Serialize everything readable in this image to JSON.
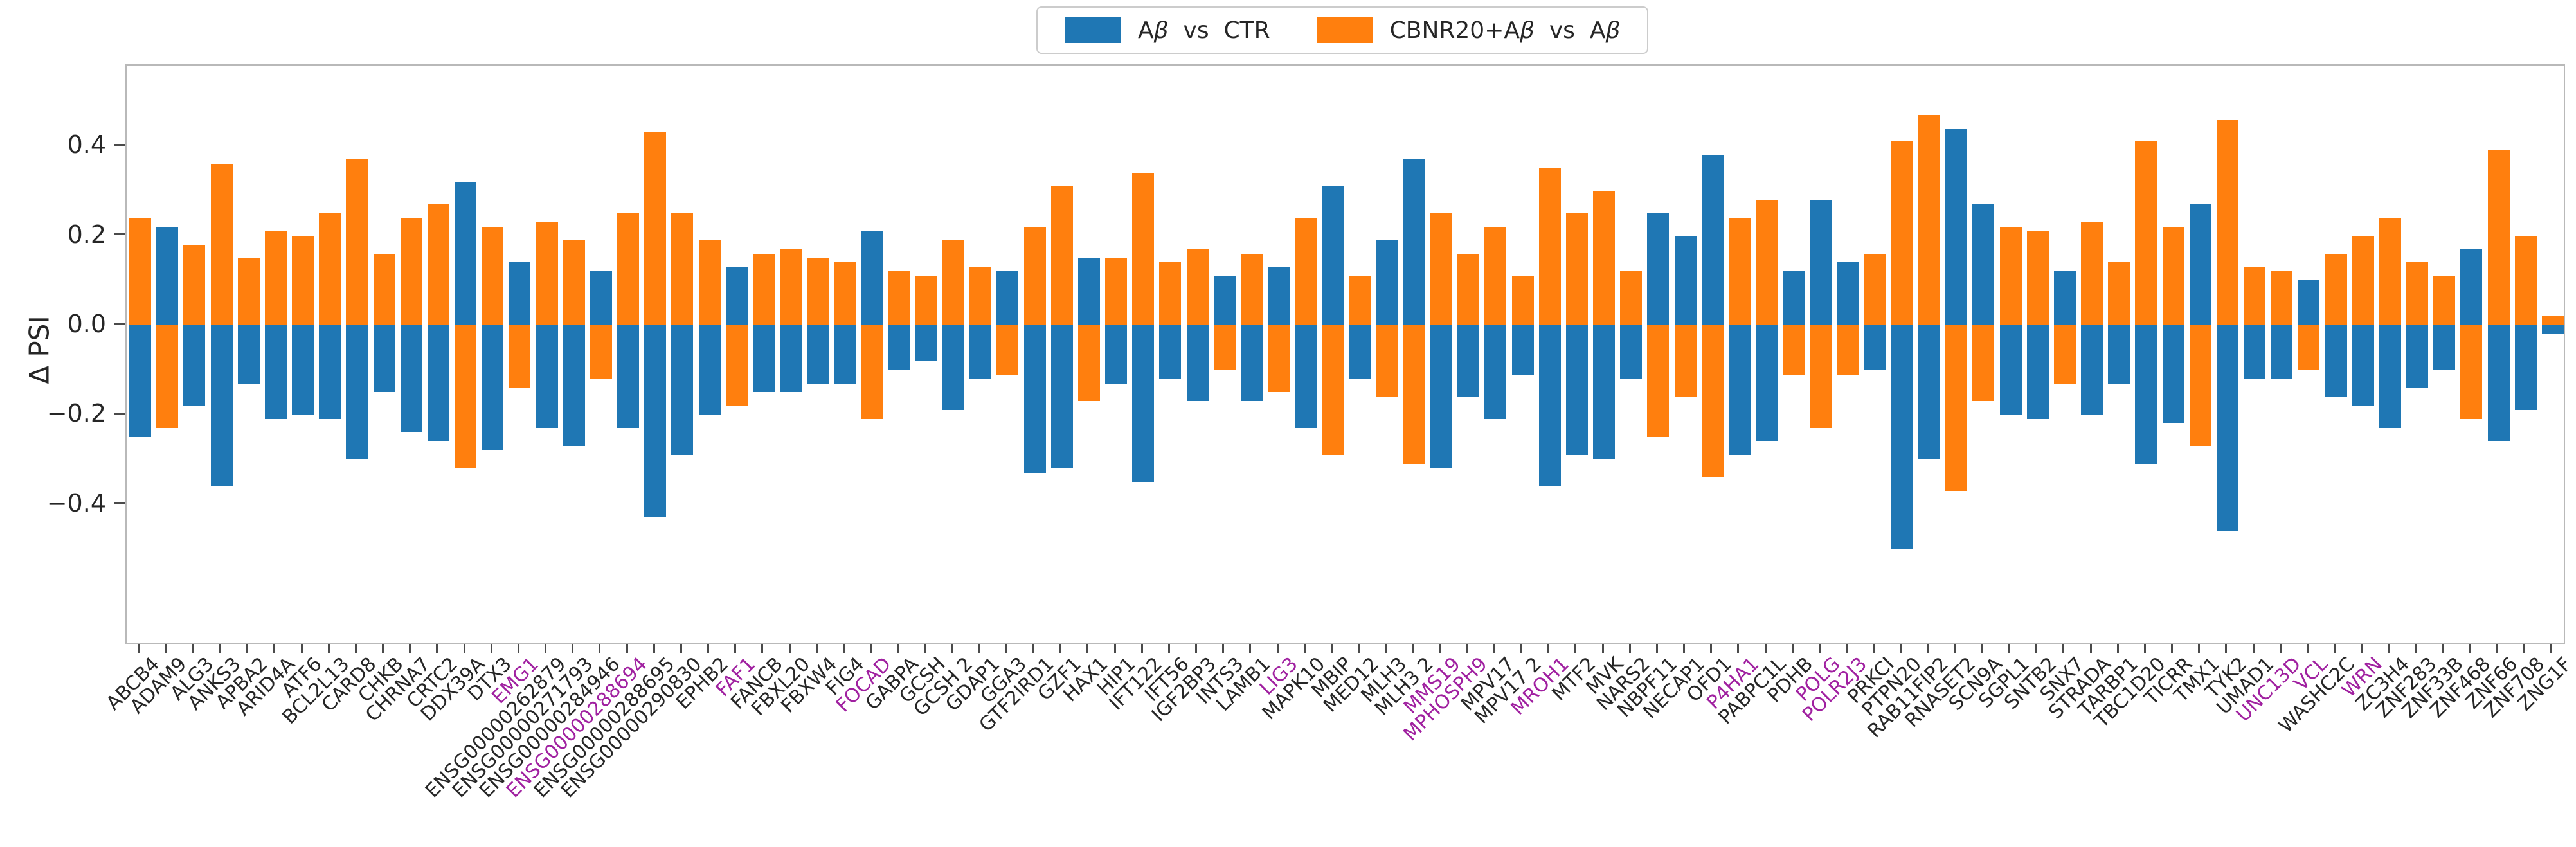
{
  "chart_data": {
    "type": "bar",
    "title": "",
    "ylabel": "Δ PSI",
    "ylim": [
      -0.715,
      0.58
    ],
    "yticks": [
      {
        "value": 0.4,
        "label": "0.4"
      },
      {
        "value": 0.2,
        "label": "0.2"
      },
      {
        "value": 0.0,
        "label": "0.0"
      },
      {
        "value": -0.2,
        "label": "−0.2"
      },
      {
        "value": -0.4,
        "label": "−0.4"
      }
    ],
    "grid": false,
    "legend_position": "top-center",
    "series": [
      {
        "name": "Aβ  vs  CTR",
        "color": "#1f77b4"
      },
      {
        "name": "CBNR20+Aβ  vs  Aβ",
        "color": "#ff7f0e"
      }
    ],
    "highlight_label_color": "#a020a0",
    "genes": [
      {
        "label": "ABCB4",
        "blue": -0.25,
        "orange": 0.24,
        "highlight": false
      },
      {
        "label": "ADAM9",
        "blue": 0.22,
        "orange": -0.23,
        "highlight": false
      },
      {
        "label": "ALG3",
        "blue": -0.18,
        "orange": 0.18,
        "highlight": false
      },
      {
        "label": "ANKS3",
        "blue": -0.36,
        "orange": 0.36,
        "highlight": false
      },
      {
        "label": "APBA2",
        "blue": -0.13,
        "orange": 0.15,
        "highlight": false
      },
      {
        "label": "ARID4A",
        "blue": -0.21,
        "orange": 0.21,
        "highlight": false
      },
      {
        "label": "ATF6",
        "blue": -0.2,
        "orange": 0.2,
        "highlight": false
      },
      {
        "label": "BCL2L13",
        "blue": -0.21,
        "orange": 0.25,
        "highlight": false
      },
      {
        "label": "CARD8",
        "blue": -0.3,
        "orange": 0.37,
        "highlight": false
      },
      {
        "label": "CHKB",
        "blue": -0.15,
        "orange": 0.16,
        "highlight": false
      },
      {
        "label": "CHRNA7",
        "blue": -0.24,
        "orange": 0.24,
        "highlight": false
      },
      {
        "label": "CRTC2",
        "blue": -0.26,
        "orange": 0.27,
        "highlight": false
      },
      {
        "label": "DDX39A",
        "blue": 0.32,
        "orange": -0.32,
        "highlight": false
      },
      {
        "label": "DTX3",
        "blue": -0.28,
        "orange": 0.22,
        "highlight": false
      },
      {
        "label": "EMG1",
        "blue": 0.14,
        "orange": -0.14,
        "highlight": true
      },
      {
        "label": "ENSG00000262879",
        "blue": -0.23,
        "orange": 0.23,
        "highlight": false
      },
      {
        "label": "ENSG00000271793",
        "blue": -0.27,
        "orange": 0.19,
        "highlight": false
      },
      {
        "label": "ENSG00000284946",
        "blue": 0.12,
        "orange": -0.12,
        "highlight": false
      },
      {
        "label": "ENSG00000288694",
        "blue": -0.23,
        "orange": 0.25,
        "highlight": true
      },
      {
        "label": "ENSG00000288695",
        "blue": -0.43,
        "orange": 0.43,
        "highlight": false
      },
      {
        "label": "ENSG00000290830",
        "blue": -0.29,
        "orange": 0.25,
        "highlight": false
      },
      {
        "label": "EPHB2",
        "blue": -0.2,
        "orange": 0.19,
        "highlight": false
      },
      {
        "label": "FAF1",
        "blue": 0.13,
        "orange": -0.18,
        "highlight": true
      },
      {
        "label": "FANCB",
        "blue": -0.15,
        "orange": 0.16,
        "highlight": false
      },
      {
        "label": "FBXL20",
        "blue": -0.15,
        "orange": 0.17,
        "highlight": false
      },
      {
        "label": "FBXW4",
        "blue": -0.13,
        "orange": 0.15,
        "highlight": false
      },
      {
        "label": "FIG4",
        "blue": -0.13,
        "orange": 0.14,
        "highlight": false
      },
      {
        "label": "FOCAD",
        "blue": 0.21,
        "orange": -0.21,
        "highlight": true
      },
      {
        "label": "GABPA",
        "blue": -0.1,
        "orange": 0.12,
        "highlight": false
      },
      {
        "label": "GCSH",
        "blue": -0.08,
        "orange": 0.11,
        "highlight": false
      },
      {
        "label": "GCSH 2",
        "blue": -0.19,
        "orange": 0.19,
        "highlight": false
      },
      {
        "label": "GDAP1",
        "blue": -0.12,
        "orange": 0.13,
        "highlight": false
      },
      {
        "label": "GGA3",
        "blue": 0.12,
        "orange": -0.11,
        "highlight": false
      },
      {
        "label": "GTF2IRD1",
        "blue": -0.33,
        "orange": 0.22,
        "highlight": false
      },
      {
        "label": "GZF1",
        "blue": -0.32,
        "orange": 0.31,
        "highlight": false
      },
      {
        "label": "HAX1",
        "blue": 0.15,
        "orange": -0.17,
        "highlight": false
      },
      {
        "label": "HIP1",
        "blue": -0.13,
        "orange": 0.15,
        "highlight": false
      },
      {
        "label": "IFT122",
        "blue": -0.35,
        "orange": 0.34,
        "highlight": false
      },
      {
        "label": "IFT56",
        "blue": -0.12,
        "orange": 0.14,
        "highlight": false
      },
      {
        "label": "IGF2BP3",
        "blue": -0.17,
        "orange": 0.17,
        "highlight": false
      },
      {
        "label": "INTS3",
        "blue": 0.11,
        "orange": -0.1,
        "highlight": false
      },
      {
        "label": "LAMB1",
        "blue": -0.17,
        "orange": 0.16,
        "highlight": false
      },
      {
        "label": "LIG3",
        "blue": 0.13,
        "orange": -0.15,
        "highlight": true
      },
      {
        "label": "MAPK10",
        "blue": -0.23,
        "orange": 0.24,
        "highlight": false
      },
      {
        "label": "MBIP",
        "blue": 0.31,
        "orange": -0.29,
        "highlight": false
      },
      {
        "label": "MED12",
        "blue": -0.12,
        "orange": 0.11,
        "highlight": false
      },
      {
        "label": "MLH3",
        "blue": 0.19,
        "orange": -0.16,
        "highlight": false
      },
      {
        "label": "MLH3 2",
        "blue": 0.37,
        "orange": -0.31,
        "highlight": false
      },
      {
        "label": "MMS19",
        "blue": -0.32,
        "orange": 0.25,
        "highlight": true
      },
      {
        "label": "MPHOSPH9",
        "blue": -0.16,
        "orange": 0.16,
        "highlight": true
      },
      {
        "label": "MPV17",
        "blue": -0.21,
        "orange": 0.22,
        "highlight": false
      },
      {
        "label": "MPV17 2",
        "blue": -0.11,
        "orange": 0.11,
        "highlight": false
      },
      {
        "label": "MROH1",
        "blue": -0.36,
        "orange": 0.35,
        "highlight": true
      },
      {
        "label": "MTF2",
        "blue": -0.29,
        "orange": 0.25,
        "highlight": false
      },
      {
        "label": "MVK",
        "blue": -0.3,
        "orange": 0.3,
        "highlight": false
      },
      {
        "label": "NARS2",
        "blue": -0.12,
        "orange": 0.12,
        "highlight": false
      },
      {
        "label": "NBPF11",
        "blue": 0.25,
        "orange": -0.25,
        "highlight": false
      },
      {
        "label": "NECAP1",
        "blue": 0.2,
        "orange": -0.16,
        "highlight": false
      },
      {
        "label": "OFD1",
        "blue": 0.38,
        "orange": -0.34,
        "highlight": false
      },
      {
        "label": "P4HA1",
        "blue": -0.29,
        "orange": 0.24,
        "highlight": true
      },
      {
        "label": "PABPC1L",
        "blue": -0.26,
        "orange": 0.28,
        "highlight": false
      },
      {
        "label": "PDHB",
        "blue": 0.12,
        "orange": -0.11,
        "highlight": false
      },
      {
        "label": "POLG",
        "blue": 0.28,
        "orange": -0.23,
        "highlight": true
      },
      {
        "label": "POLR2J3",
        "blue": 0.14,
        "orange": -0.11,
        "highlight": true
      },
      {
        "label": "PRKCI",
        "blue": -0.1,
        "orange": 0.16,
        "highlight": false
      },
      {
        "label": "PTPN20",
        "blue": -0.5,
        "orange": 0.41,
        "highlight": false
      },
      {
        "label": "RAB11FIP2",
        "blue": -0.3,
        "orange": 0.47,
        "highlight": false
      },
      {
        "label": "RNASET2",
        "blue": 0.44,
        "orange": -0.37,
        "highlight": false
      },
      {
        "label": "SCN9A",
        "blue": 0.27,
        "orange": -0.17,
        "highlight": false
      },
      {
        "label": "SGPL1",
        "blue": -0.2,
        "orange": 0.22,
        "highlight": false
      },
      {
        "label": "SNTB2",
        "blue": -0.21,
        "orange": 0.21,
        "highlight": false
      },
      {
        "label": "SNX7",
        "blue": 0.12,
        "orange": -0.13,
        "highlight": false
      },
      {
        "label": "STRADA",
        "blue": -0.2,
        "orange": 0.23,
        "highlight": false
      },
      {
        "label": "TARBP1",
        "blue": -0.13,
        "orange": 0.14,
        "highlight": false
      },
      {
        "label": "TBC1D20",
        "blue": -0.31,
        "orange": 0.41,
        "highlight": false
      },
      {
        "label": "TICRR",
        "blue": -0.22,
        "orange": 0.22,
        "highlight": false
      },
      {
        "label": "TMX1",
        "blue": 0.27,
        "orange": -0.27,
        "highlight": false
      },
      {
        "label": "TYK2",
        "blue": -0.46,
        "orange": 0.46,
        "highlight": false
      },
      {
        "label": "UMAD1",
        "blue": -0.12,
        "orange": 0.13,
        "highlight": false
      },
      {
        "label": "UNC13D",
        "blue": -0.12,
        "orange": 0.12,
        "highlight": true
      },
      {
        "label": "VCL",
        "blue": 0.1,
        "orange": -0.1,
        "highlight": true
      },
      {
        "label": "WASHC2C",
        "blue": -0.16,
        "orange": 0.16,
        "highlight": false
      },
      {
        "label": "WRN",
        "blue": -0.18,
        "orange": 0.2,
        "highlight": true
      },
      {
        "label": "ZC3H4",
        "blue": -0.23,
        "orange": 0.24,
        "highlight": false
      },
      {
        "label": "ZNF283",
        "blue": -0.14,
        "orange": 0.14,
        "highlight": false
      },
      {
        "label": "ZNF33B",
        "blue": -0.1,
        "orange": 0.11,
        "highlight": false
      },
      {
        "label": "ZNF468",
        "blue": 0.17,
        "orange": -0.21,
        "highlight": false
      },
      {
        "label": "ZNF66",
        "blue": -0.26,
        "orange": 0.39,
        "highlight": false
      },
      {
        "label": "ZNF708",
        "blue": -0.19,
        "orange": 0.2,
        "highlight": false
      },
      {
        "label": "ZNG1F",
        "blue": -0.02,
        "orange": 0.02,
        "highlight": false
      }
    ]
  }
}
